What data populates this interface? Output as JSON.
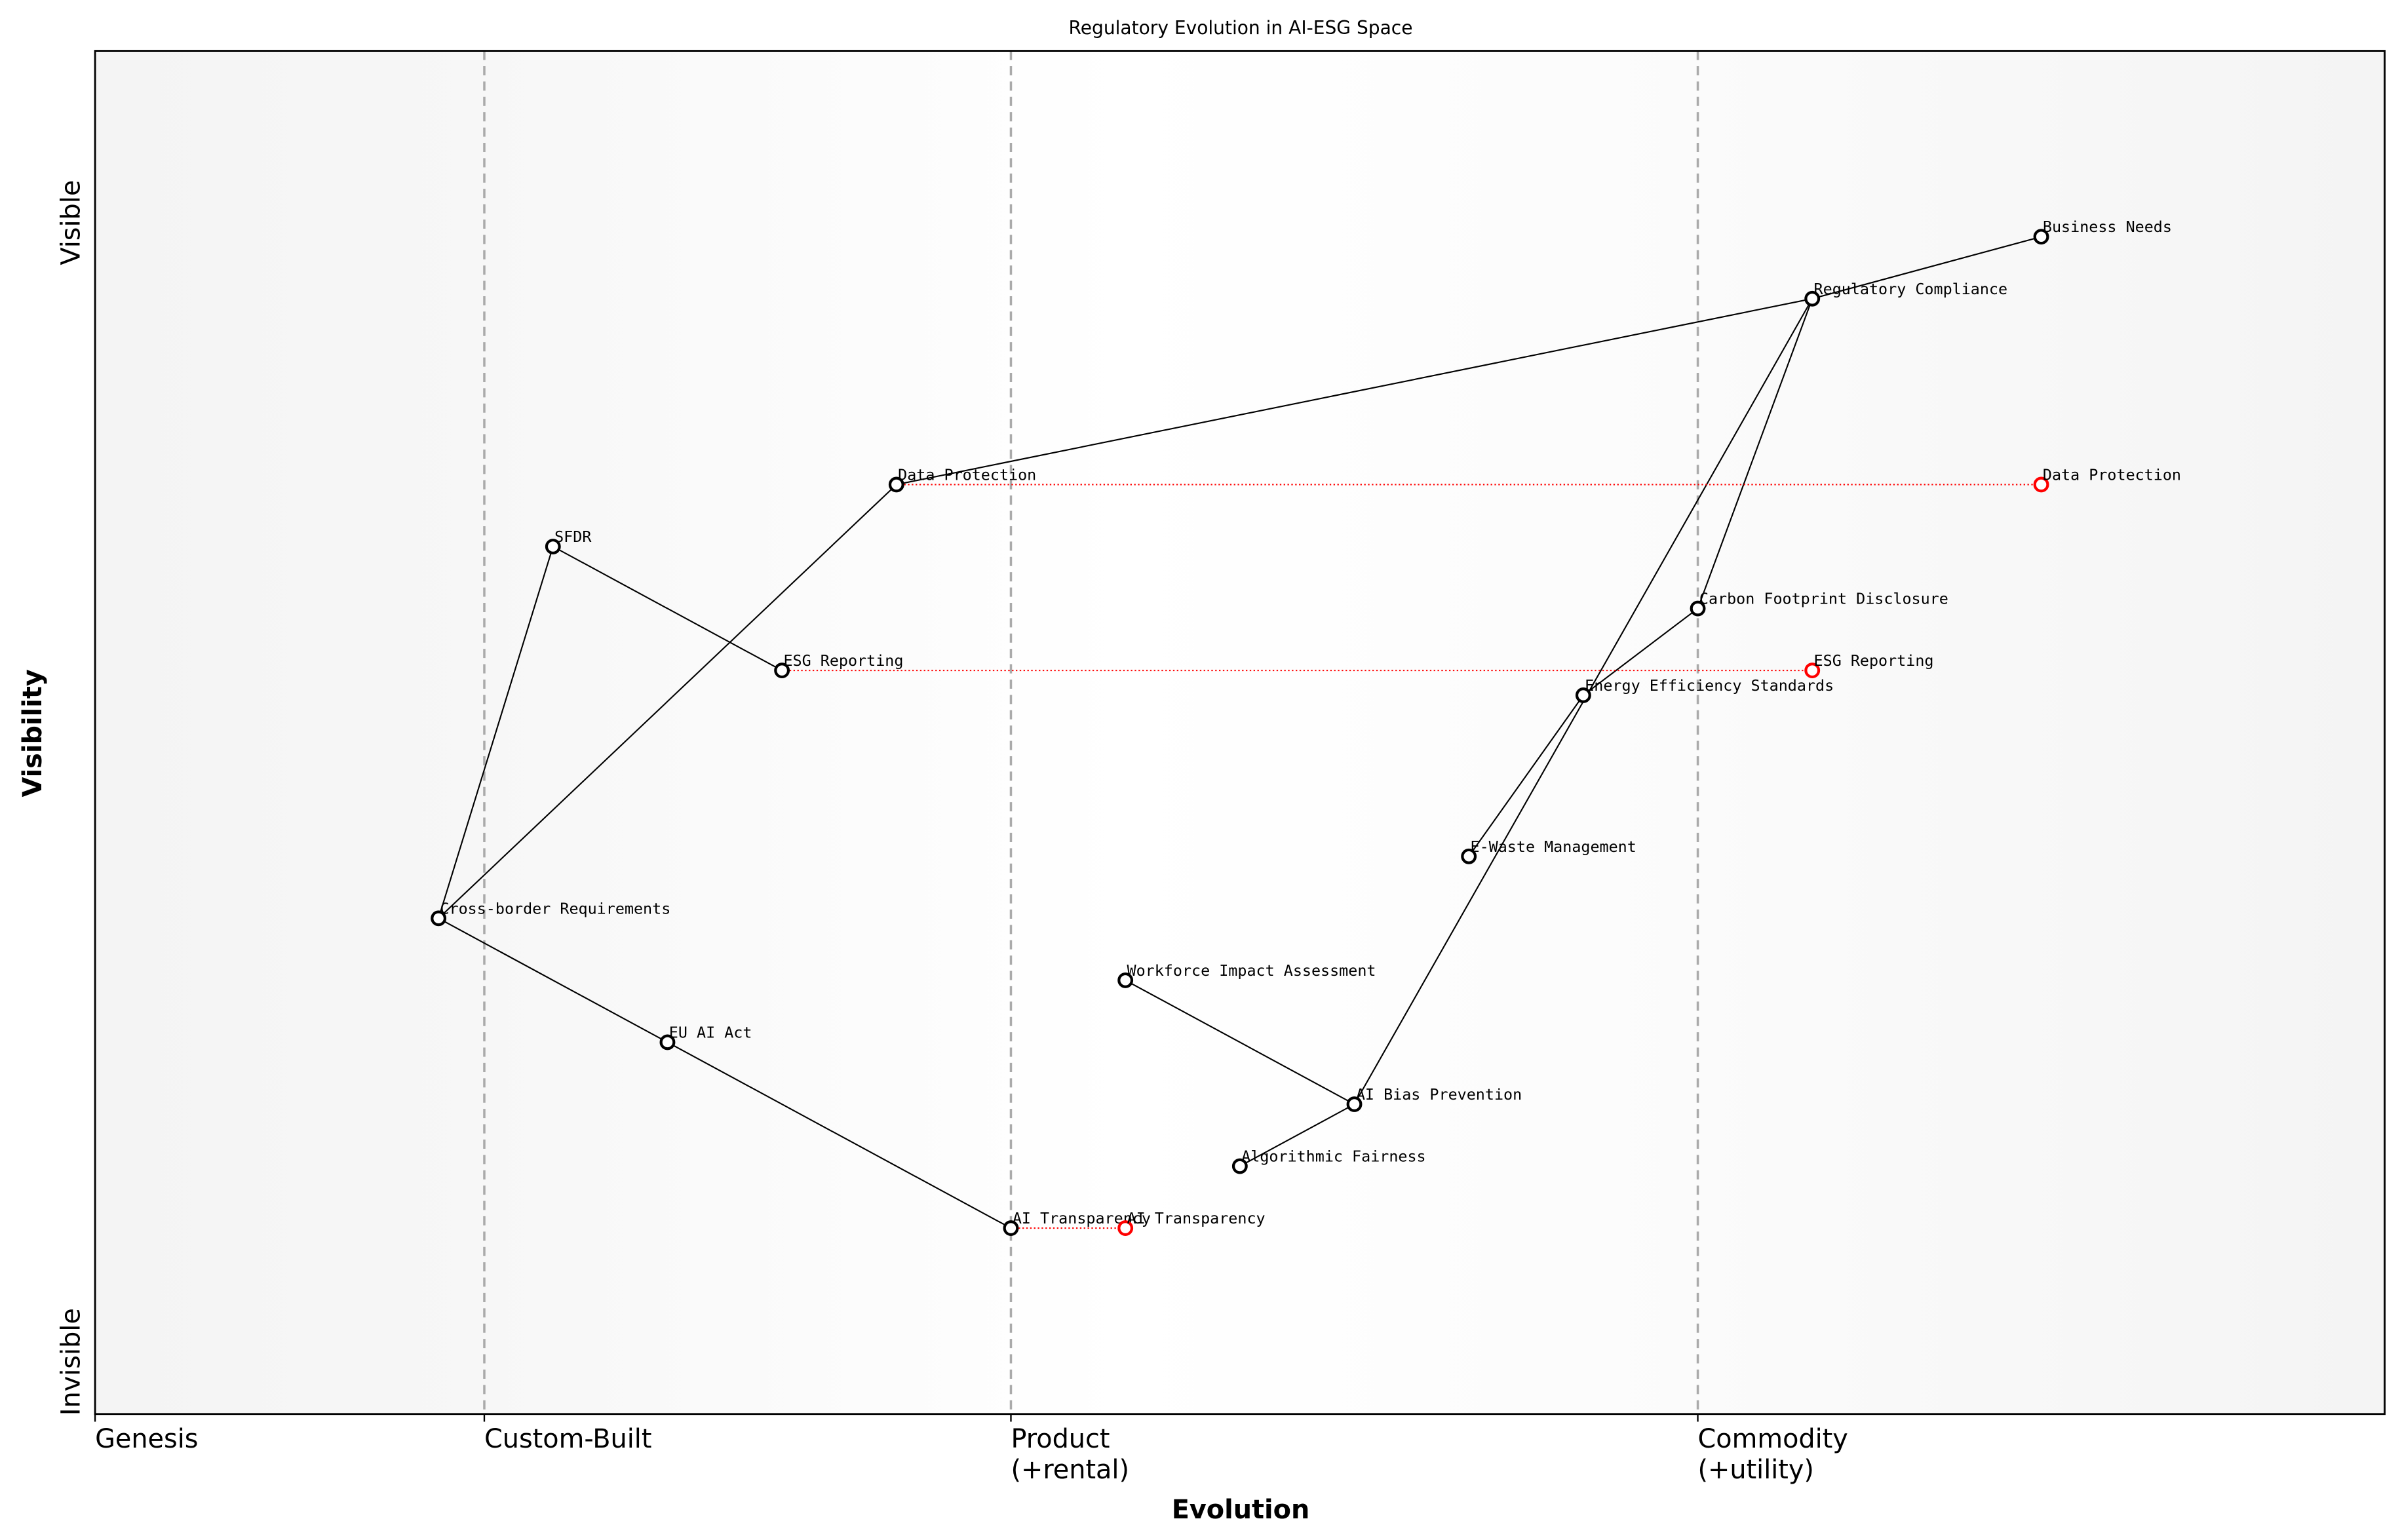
{
  "chart_data": {
    "type": "scatter",
    "title": "Regulatory Evolution in AI-ESG Space",
    "xlabel": "Evolution",
    "ylabel": "Visibility",
    "xlim": [
      0,
      1
    ],
    "ylim": [
      0,
      1.1
    ],
    "x_stage_labels": [
      {
        "value": 0.0,
        "label": "Genesis"
      },
      {
        "value": 0.17,
        "label": "Custom-Built"
      },
      {
        "value": 0.4,
        "label": "Product\n(+rental)"
      },
      {
        "value": 0.7,
        "label": "Commodity\n(+utility)"
      }
    ],
    "stage_boundaries": [
      0.17,
      0.4,
      0.7
    ],
    "y_labels": {
      "top": "Visible",
      "bottom": "Invisible"
    },
    "colors": {
      "component": "#000000",
      "evolved": "#ff0000",
      "boundary": "#aaaaaa",
      "edge": "#000000"
    },
    "components": [
      {
        "name": "Business Needs",
        "x": 0.85,
        "y": 0.95
      },
      {
        "name": "Regulatory Compliance",
        "x": 0.75,
        "y": 0.9
      },
      {
        "name": "Data Protection",
        "x": 0.35,
        "y": 0.75
      },
      {
        "name": "SFDR",
        "x": 0.2,
        "y": 0.7
      },
      {
        "name": "ESG Reporting",
        "x": 0.3,
        "y": 0.6
      },
      {
        "name": "Carbon Footprint Disclosure",
        "x": 0.7,
        "y": 0.65
      },
      {
        "name": "Energy Efficiency Standards",
        "x": 0.65,
        "y": 0.58
      },
      {
        "name": "E-Waste Management",
        "x": 0.6,
        "y": 0.45
      },
      {
        "name": "Cross-border Requirements",
        "x": 0.15,
        "y": 0.4
      },
      {
        "name": "Workforce Impact Assessment",
        "x": 0.45,
        "y": 0.35
      },
      {
        "name": "EU AI Act",
        "x": 0.25,
        "y": 0.3
      },
      {
        "name": "AI Bias Prevention",
        "x": 0.55,
        "y": 0.25
      },
      {
        "name": "Algorithmic Fairness",
        "x": 0.5,
        "y": 0.2
      },
      {
        "name": "AI Transparency",
        "x": 0.4,
        "y": 0.15
      }
    ],
    "evolved": [
      {
        "name": "Data Protection",
        "from_x": 0.35,
        "x": 0.85,
        "y": 0.75
      },
      {
        "name": "ESG Reporting",
        "from_x": 0.3,
        "x": 0.75,
        "y": 0.6
      },
      {
        "name": "AI Transparency",
        "from_x": 0.4,
        "x": 0.45,
        "y": 0.15
      }
    ],
    "links": [
      [
        "Business Needs",
        "Regulatory Compliance"
      ],
      [
        "Regulatory Compliance",
        "Data Protection"
      ],
      [
        "Regulatory Compliance",
        "Carbon Footprint Disclosure"
      ],
      [
        "Regulatory Compliance",
        "AI Bias Prevention"
      ],
      [
        "Carbon Footprint Disclosure",
        "Energy Efficiency Standards"
      ],
      [
        "Energy Efficiency Standards",
        "E-Waste Management"
      ],
      [
        "Data Protection",
        "Cross-border Requirements"
      ],
      [
        "Cross-border Requirements",
        "SFDR"
      ],
      [
        "SFDR",
        "ESG Reporting"
      ],
      [
        "Cross-border Requirements",
        "EU AI Act"
      ],
      [
        "EU AI Act",
        "AI Transparency"
      ],
      [
        "Workforce Impact Assessment",
        "AI Bias Prevention"
      ],
      [
        "AI Bias Prevention",
        "Algorithmic Fairness"
      ]
    ]
  }
}
